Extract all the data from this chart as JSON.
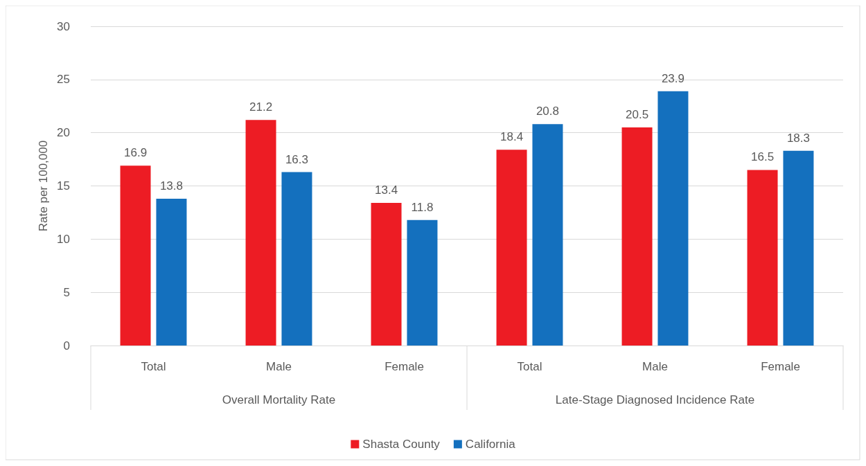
{
  "chart_data": {
    "type": "bar",
    "ylabel": "Rate per 100,000",
    "categories": [
      "Total",
      "Male",
      "Female",
      "Total",
      "Male",
      "Female"
    ],
    "series": [
      {
        "name": "Shasta County",
        "color": "#ed1c24",
        "values": [
          16.9,
          21.2,
          13.4,
          18.4,
          20.5,
          16.5
        ]
      },
      {
        "name": "California",
        "color": "#1470be",
        "values": [
          13.8,
          16.3,
          11.8,
          20.8,
          23.9,
          18.3
        ]
      }
    ],
    "annotations": [
      "Overall Mortality Rate",
      "Late-Stage Diagnosed Incidence Rate"
    ],
    "ylim": [
      0,
      30
    ],
    "yticks": [
      0,
      5,
      10,
      15,
      20,
      25,
      30
    ],
    "grid": "y",
    "legend": "bottom",
    "data_labels": true
  }
}
